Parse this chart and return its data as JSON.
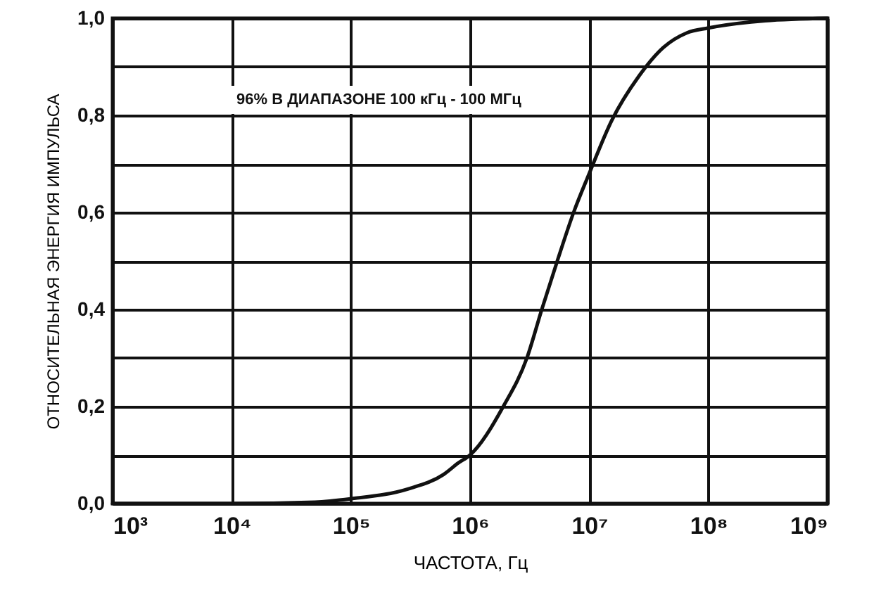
{
  "chart_data": {
    "type": "line",
    "xlabel": "ЧАСТОТА, Гц",
    "ylabel": "ОТНОСИТЕЛЬНАЯ ЭНЕРГИЯ ИМПУЛЬСА",
    "annotations": [
      "96% В ДИАПАЗОНЕ 100 кГц - 100 МГц"
    ],
    "x": [
      1000,
      10000,
      50000,
      100000,
      300000,
      600000,
      800000,
      1000000,
      1900000,
      3000000,
      4000000,
      5400000,
      7400000,
      10000000,
      15500000,
      26000000,
      42000000,
      66000000,
      100000000,
      300000000,
      1000000000
    ],
    "series": [
      {
        "color": "#111111",
        "values": [
          0,
          0,
          0.003,
          0.01,
          0.03,
          0.06,
          0.084,
          0.1,
          0.2,
          0.3,
          0.4,
          0.5,
          0.6,
          0.68,
          0.79,
          0.88,
          0.94,
          0.97,
          0.98,
          0.995,
          1.0
        ]
      }
    ],
    "log": "x",
    "xlim": [
      1000,
      1000000000
    ],
    "xticks": [
      {
        "value": 1000,
        "label": "10³"
      },
      {
        "value": 10000,
        "label": "10⁴"
      },
      {
        "value": 100000,
        "label": "10⁵"
      },
      {
        "value": 1000000,
        "label": "10⁶"
      },
      {
        "value": 10000000,
        "label": "10⁷"
      },
      {
        "value": 100000000,
        "label": "10⁸"
      },
      {
        "value": 1000000000,
        "label": "10⁹"
      }
    ],
    "ylim": [
      0,
      1
    ],
    "yticks": [
      {
        "value": 0,
        "label": "0,0"
      },
      {
        "value": 0.1,
        "label": null
      },
      {
        "value": 0.2,
        "label": "0,2"
      },
      {
        "value": 0.3,
        "label": null
      },
      {
        "value": 0.4,
        "label": "0,4"
      },
      {
        "value": 0.5,
        "label": null
      },
      {
        "value": 0.6,
        "label": "0,6"
      },
      {
        "value": 0.7,
        "label": null
      },
      {
        "value": 0.8,
        "label": "0,8"
      },
      {
        "value": 0.9,
        "label": null
      },
      {
        "value": 1,
        "label": "1,0"
      }
    ],
    "grid": true,
    "marker": "none",
    "line_style": "solid"
  }
}
